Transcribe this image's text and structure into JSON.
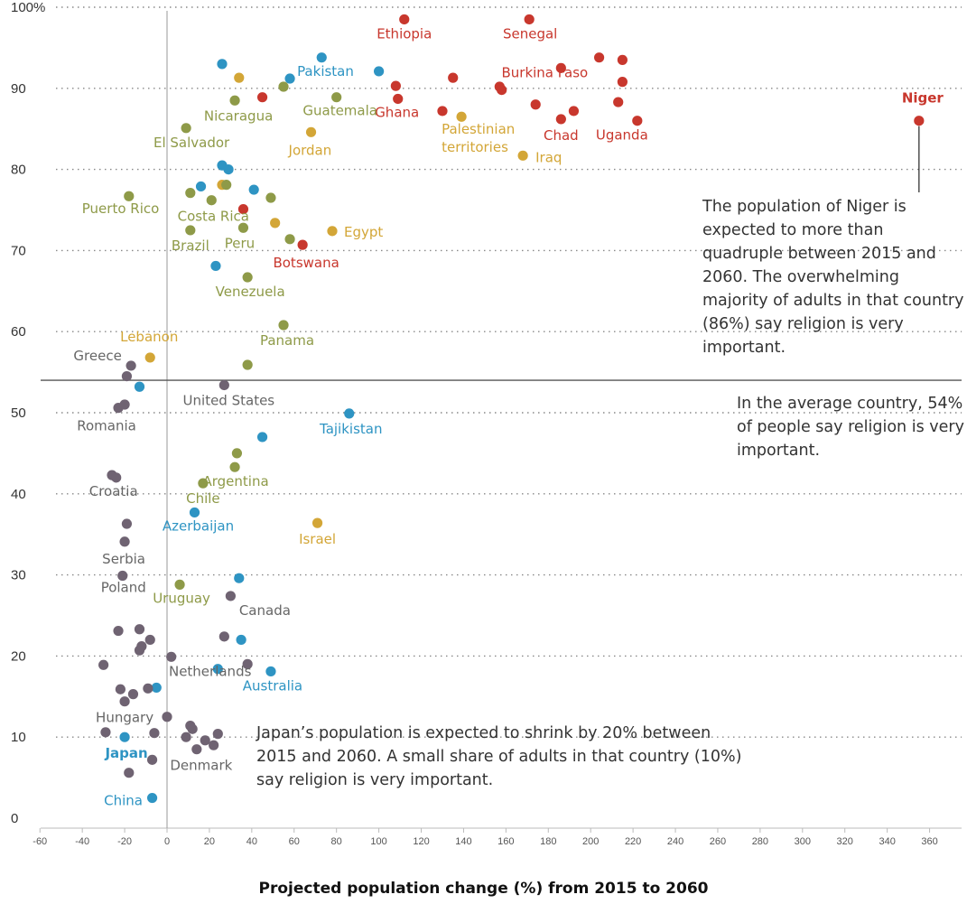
{
  "chart_data": {
    "type": "scatter",
    "xlabel": "Projected population change (%) from 2015 to 2060",
    "ylabel": "",
    "xlim": [
      -65,
      375
    ],
    "ylim": [
      0,
      100
    ],
    "x_ticks": [
      -60,
      -40,
      -20,
      0,
      20,
      40,
      60,
      80,
      100,
      120,
      140,
      160,
      180,
      200,
      220,
      240,
      260,
      280,
      300,
      320,
      340,
      360
    ],
    "y_ticks": [
      0,
      10,
      20,
      30,
      40,
      50,
      60,
      70,
      80,
      90,
      100
    ],
    "y_tick_labels": [
      "0",
      "10",
      "20",
      "30",
      "40",
      "50",
      "60",
      "70",
      "80",
      "90",
      "100%"
    ],
    "grid": "horizontal dotted",
    "reference_line": {
      "y": 54
    },
    "colors": {
      "red": "#c8372d",
      "gold": "#d3a637",
      "olive": "#8e9a48",
      "blue": "#2e94c3",
      "purple": "#6f6372",
      "gray_text": "#666666"
    },
    "points": [
      {
        "x": 355,
        "y": 86,
        "color": "red",
        "label": "Niger",
        "bold": true
      },
      {
        "x": 112,
        "y": 98.5,
        "color": "red",
        "label": "Ethiopia"
      },
      {
        "x": 171,
        "y": 98.5,
        "color": "red",
        "label": "Senegal"
      },
      {
        "x": 204,
        "y": 93.8,
        "color": "red"
      },
      {
        "x": 215,
        "y": 93.5,
        "color": "red"
      },
      {
        "x": 186,
        "y": 92.5,
        "color": "red",
        "label": "Burkina Faso"
      },
      {
        "x": 135,
        "y": 91.3,
        "color": "red"
      },
      {
        "x": 215,
        "y": 90.8,
        "color": "red"
      },
      {
        "x": 108,
        "y": 90.3,
        "color": "red"
      },
      {
        "x": 157,
        "y": 90.2,
        "color": "red"
      },
      {
        "x": 158,
        "y": 89.8,
        "color": "red"
      },
      {
        "x": 109,
        "y": 88.7,
        "color": "red",
        "label": "Ghana"
      },
      {
        "x": 174,
        "y": 88.0,
        "color": "red"
      },
      {
        "x": 213,
        "y": 88.3,
        "color": "red"
      },
      {
        "x": 130,
        "y": 87.2,
        "color": "red"
      },
      {
        "x": 192,
        "y": 87.2,
        "color": "red"
      },
      {
        "x": 186,
        "y": 86.2,
        "color": "red",
        "label": "Chad"
      },
      {
        "x": 222,
        "y": 86.0,
        "color": "red",
        "label": "Uganda"
      },
      {
        "x": 45,
        "y": 88.9,
        "color": "red"
      },
      {
        "x": 36,
        "y": 75.1,
        "color": "red"
      },
      {
        "x": 64,
        "y": 70.7,
        "color": "red",
        "label": "Botswana"
      },
      {
        "x": 34,
        "y": 91.3,
        "color": "gold"
      },
      {
        "x": 139,
        "y": 86.5,
        "color": "gold",
        "label": "Palestinian territories"
      },
      {
        "x": 68,
        "y": 84.6,
        "color": "gold",
        "label": "Jordan"
      },
      {
        "x": 168,
        "y": 81.7,
        "color": "gold",
        "label": "Iraq"
      },
      {
        "x": 26,
        "y": 78.1,
        "color": "gold"
      },
      {
        "x": 51,
        "y": 73.4,
        "color": "gold"
      },
      {
        "x": 78,
        "y": 72.4,
        "color": "gold",
        "label": "Egypt"
      },
      {
        "x": -8,
        "y": 56.8,
        "color": "gold",
        "label": "Lebanon"
      },
      {
        "x": 71,
        "y": 36.4,
        "color": "gold",
        "label": "Israel"
      },
      {
        "x": 32,
        "y": 88.5,
        "color": "olive",
        "label": "Nicaragua"
      },
      {
        "x": 55,
        "y": 90.2,
        "color": "olive"
      },
      {
        "x": 80,
        "y": 88.9,
        "color": "olive",
        "label": "Guatemala"
      },
      {
        "x": 9,
        "y": 85.1,
        "color": "olive",
        "label": "El Salvador"
      },
      {
        "x": 28,
        "y": 78.1,
        "color": "olive"
      },
      {
        "x": 11,
        "y": 77.1,
        "color": "olive"
      },
      {
        "x": 21,
        "y": 76.2,
        "color": "olive",
        "label": "Costa Rica"
      },
      {
        "x": 49,
        "y": 76.5,
        "color": "olive"
      },
      {
        "x": -18,
        "y": 76.7,
        "color": "olive",
        "label": "Puerto Rico"
      },
      {
        "x": 11,
        "y": 72.5,
        "color": "olive",
        "label": "Brazil"
      },
      {
        "x": 36,
        "y": 72.8,
        "color": "olive",
        "label": "Peru"
      },
      {
        "x": 58,
        "y": 71.4,
        "color": "olive"
      },
      {
        "x": 38,
        "y": 66.7,
        "color": "olive",
        "label": "Venezuela"
      },
      {
        "x": 55,
        "y": 60.8,
        "color": "olive",
        "label": "Panama"
      },
      {
        "x": 38,
        "y": 55.9,
        "color": "olive"
      },
      {
        "x": 33,
        "y": 45.0,
        "color": "olive"
      },
      {
        "x": 32,
        "y": 43.3,
        "color": "olive",
        "label": "Argentina"
      },
      {
        "x": 17,
        "y": 41.3,
        "color": "olive",
        "label": "Chile"
      },
      {
        "x": 6,
        "y": 28.8,
        "color": "olive",
        "label": "Uruguay"
      },
      {
        "x": 26,
        "y": 93.0,
        "color": "blue"
      },
      {
        "x": 73,
        "y": 93.8,
        "color": "blue"
      },
      {
        "x": 58,
        "y": 91.2,
        "color": "blue",
        "label": "Pakistan"
      },
      {
        "x": 100,
        "y": 92.1,
        "color": "blue"
      },
      {
        "x": 26,
        "y": 80.5,
        "color": "blue"
      },
      {
        "x": 29,
        "y": 80.0,
        "color": "blue"
      },
      {
        "x": 16,
        "y": 77.9,
        "color": "blue"
      },
      {
        "x": 41,
        "y": 77.5,
        "color": "blue"
      },
      {
        "x": 23,
        "y": 68.1,
        "color": "blue"
      },
      {
        "x": -13,
        "y": 53.2,
        "color": "blue"
      },
      {
        "x": 86,
        "y": 49.9,
        "color": "blue",
        "label": "Tajikistan"
      },
      {
        "x": 45,
        "y": 47.0,
        "color": "blue"
      },
      {
        "x": 13,
        "y": 37.7,
        "color": "blue",
        "label": "Azerbaijan"
      },
      {
        "x": 34,
        "y": 29.6,
        "color": "blue"
      },
      {
        "x": 35,
        "y": 22.0,
        "color": "blue"
      },
      {
        "x": 24,
        "y": 18.4,
        "color": "blue"
      },
      {
        "x": 49,
        "y": 18.1,
        "color": "blue",
        "label": "Australia"
      },
      {
        "x": -5,
        "y": 16.1,
        "color": "blue"
      },
      {
        "x": -20,
        "y": 10.0,
        "color": "blue",
        "label": "Japan",
        "bold": true
      },
      {
        "x": -7,
        "y": 2.5,
        "color": "blue",
        "label": "China"
      },
      {
        "x": -17,
        "y": 55.8,
        "color": "purple",
        "label": "Greece"
      },
      {
        "x": -19,
        "y": 54.5,
        "color": "purple"
      },
      {
        "x": 27,
        "y": 53.4,
        "color": "purple",
        "label": "United States"
      },
      {
        "x": -23,
        "y": 50.6,
        "color": "purple",
        "label": "Romania"
      },
      {
        "x": -20,
        "y": 51.0,
        "color": "purple"
      },
      {
        "x": -26,
        "y": 42.3,
        "color": "purple"
      },
      {
        "x": -24,
        "y": 42.0,
        "color": "purple",
        "label": "Croatia"
      },
      {
        "x": -19,
        "y": 36.3,
        "color": "purple"
      },
      {
        "x": -20,
        "y": 34.1,
        "color": "purple",
        "label": "Serbia"
      },
      {
        "x": -21,
        "y": 29.9,
        "color": "purple",
        "label": "Poland"
      },
      {
        "x": 30,
        "y": 27.4,
        "color": "purple",
        "label": "Canada"
      },
      {
        "x": -23,
        "y": 23.1,
        "color": "purple"
      },
      {
        "x": -13,
        "y": 23.3,
        "color": "purple"
      },
      {
        "x": -8,
        "y": 22.0,
        "color": "purple"
      },
      {
        "x": -12,
        "y": 21.2,
        "color": "purple"
      },
      {
        "x": -13,
        "y": 20.7,
        "color": "purple"
      },
      {
        "x": 27,
        "y": 22.4,
        "color": "purple"
      },
      {
        "x": 2,
        "y": 19.9,
        "color": "purple",
        "label": "Netherlands"
      },
      {
        "x": -30,
        "y": 18.9,
        "color": "purple"
      },
      {
        "x": 38,
        "y": 19.0,
        "color": "purple"
      },
      {
        "x": -22,
        "y": 15.9,
        "color": "purple"
      },
      {
        "x": -9,
        "y": 16.0,
        "color": "purple"
      },
      {
        "x": -16,
        "y": 15.3,
        "color": "purple"
      },
      {
        "x": -20,
        "y": 14.4,
        "color": "purple",
        "label": "Hungary"
      },
      {
        "x": 0,
        "y": 12.5,
        "color": "purple"
      },
      {
        "x": -29,
        "y": 10.6,
        "color": "purple"
      },
      {
        "x": -6,
        "y": 10.5,
        "color": "purple"
      },
      {
        "x": 11,
        "y": 11.4,
        "color": "purple"
      },
      {
        "x": 12,
        "y": 11.0,
        "color": "purple"
      },
      {
        "x": 24,
        "y": 10.4,
        "color": "purple"
      },
      {
        "x": 9,
        "y": 10.0,
        "color": "purple"
      },
      {
        "x": 18,
        "y": 9.6,
        "color": "purple"
      },
      {
        "x": 22,
        "y": 9.0,
        "color": "purple"
      },
      {
        "x": 14,
        "y": 8.5,
        "color": "purple",
        "label": "Denmark"
      },
      {
        "x": -7,
        "y": 7.2,
        "color": "purple"
      },
      {
        "x": -18,
        "y": 5.6,
        "color": "purple"
      }
    ]
  },
  "annotations": {
    "niger_note": "The population of Niger is expected to more than quadruple between 2015 and 2060. The overwhelming majority of adults in that country (86%) say religion is very important.",
    "average_note": "In the average country, 54% of people say religion is very important.",
    "japan_note": "Japan’s population is expected to shrink by 20% between 2015 and 2060. A small share of adults in that country (10%) say religion is very important."
  }
}
